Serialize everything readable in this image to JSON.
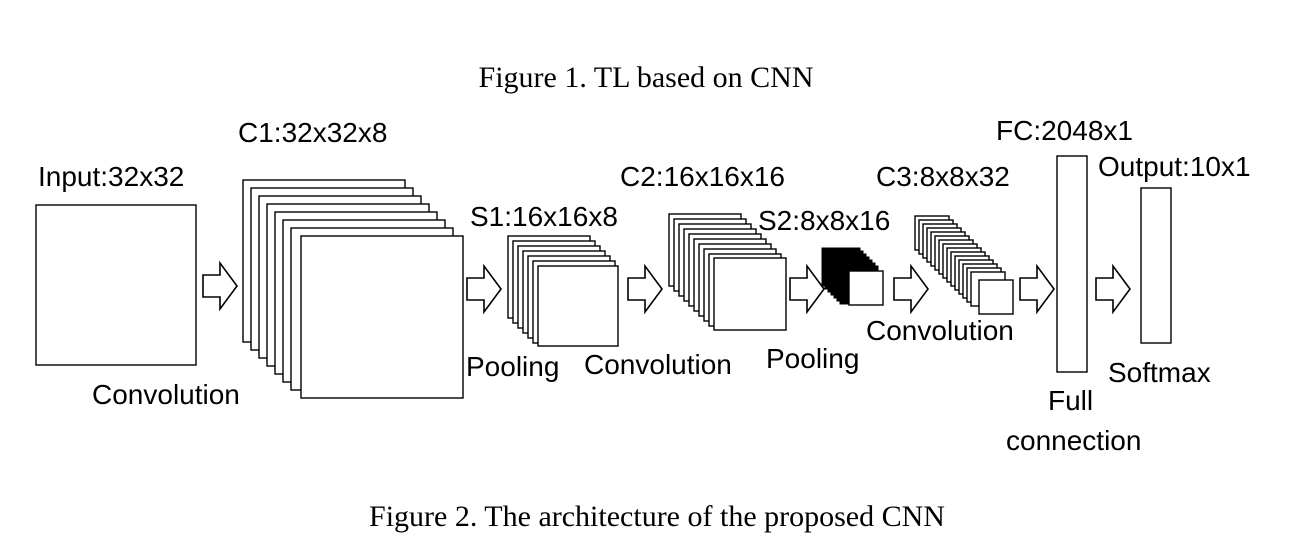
{
  "captions": {
    "figure1": "Figure 1. TL based on CNN",
    "figure2": "Figure 2. The architecture of the proposed CNN"
  },
  "layers": {
    "input": "Input:32x32",
    "c1": "C1:32x32x8",
    "s1": "S1:16x16x8",
    "c2": "C2:16x16x16",
    "s2": "S2:8x8x16",
    "c3": "C3:8x8x32",
    "fc": "FC:2048x1",
    "output": "Output:10x1"
  },
  "operations": {
    "convolution1": "Convolution",
    "pooling1": "Pooling",
    "convolution2": "Convolution",
    "pooling2": "Pooling",
    "convolution3": "Convolution",
    "full_connection_line1": "Full",
    "full_connection_line2": "connection",
    "softmax": "Softmax"
  }
}
